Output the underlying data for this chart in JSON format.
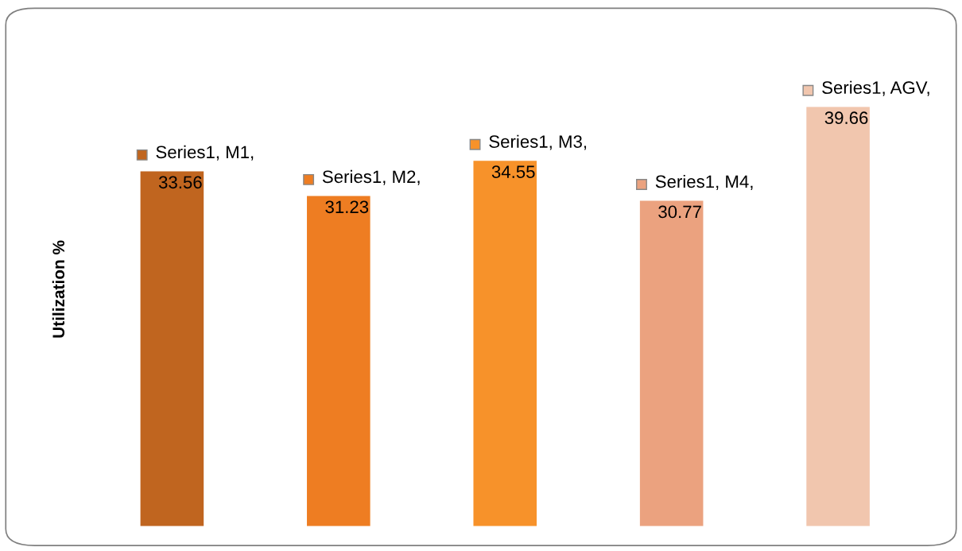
{
  "chart_data": {
    "type": "bar",
    "ylabel": "Utilization %",
    "categories": [
      null,
      null,
      null,
      null,
      null
    ],
    "values": [
      33.56,
      31.23,
      34.55,
      30.77,
      39.66
    ],
    "colors": [
      "#c0651f",
      "#ee7d22",
      "#f7922a",
      "#eba27f",
      "#f1c6ae"
    ],
    "value_labels": [
      "Series1, M1, 33.56",
      "Series1, M2, 31.23",
      "Series1, M3, 34.55",
      "Series1, M4, 30.77",
      "Series1, AGV, 39.66"
    ],
    "grid": false,
    "legend": false
  }
}
